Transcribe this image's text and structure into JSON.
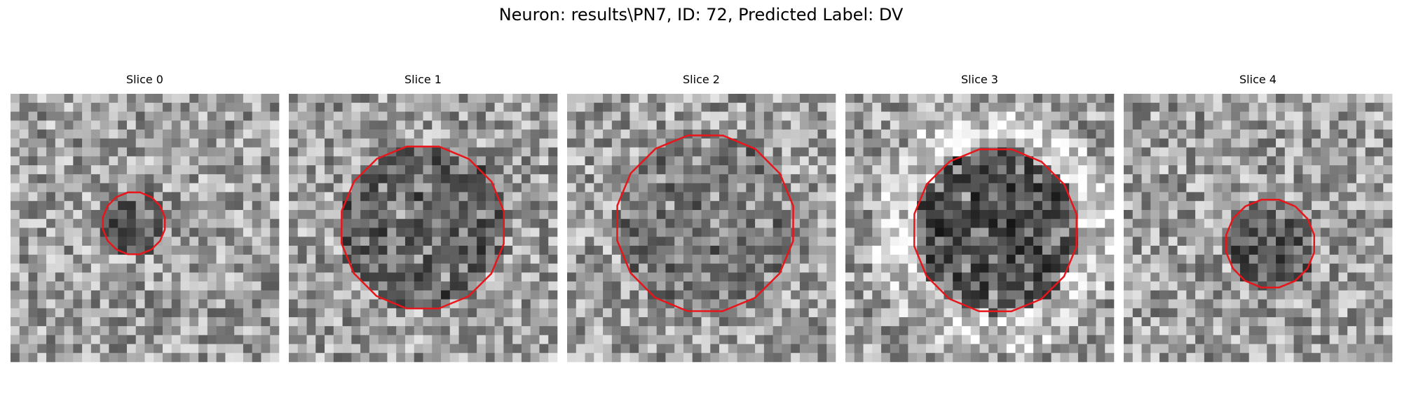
{
  "title": "Neuron: results\\PN7, ID: 72, Predicted Label: DV",
  "panels": [
    {
      "title": "Slice 0"
    },
    {
      "title": "Slice 1"
    },
    {
      "title": "Slice 2"
    },
    {
      "title": "Slice 3"
    },
    {
      "title": "Slice 4"
    }
  ]
}
